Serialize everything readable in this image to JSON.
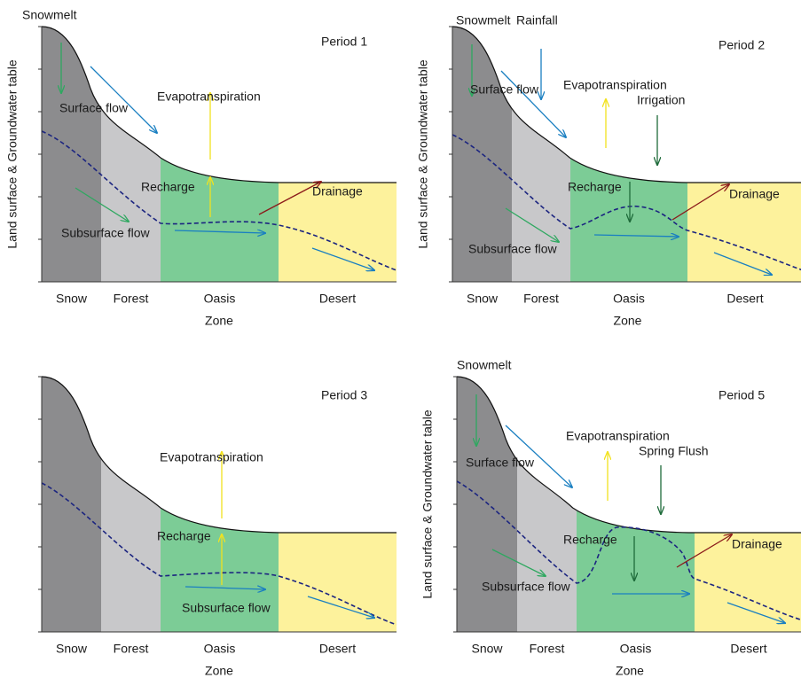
{
  "panels": [
    {
      "period": "Period 1",
      "y_axis_label": "Land surface & Groundwater table",
      "x_axis_label": "Zone",
      "zones": [
        "Snow",
        "Forest",
        "Oasis",
        "Desert"
      ],
      "annotations": [
        "Snowmelt",
        "Surface flow",
        "Evapotranspiration",
        "Recharge",
        "Drainage",
        "Subsurface flow"
      ]
    },
    {
      "period": "Period 2",
      "y_axis_label": "Land surface & Groundwater table",
      "x_axis_label": "Zone",
      "zones": [
        "Snow",
        "Forest",
        "Oasis",
        "Desert"
      ],
      "annotations": [
        "Snowmelt",
        "Rainfall",
        "Surface flow",
        "Evapotranspiration",
        "Irrigation",
        "Recharge",
        "Drainage",
        "Subsurface flow"
      ]
    },
    {
      "period": "Period 3",
      "x_axis_label": "Zone",
      "zones": [
        "Snow",
        "Forest",
        "Oasis",
        "Desert"
      ],
      "annotations": [
        "Evapotranspiration",
        "Recharge",
        "Subsurface flow"
      ]
    },
    {
      "period": "Period 5",
      "y_axis_label": "Land surface & Groundwater table",
      "x_axis_label": "Zone",
      "zones": [
        "Snow",
        "Forest",
        "Oasis",
        "Desert"
      ],
      "annotations": [
        "Snowmelt",
        "Surface flow",
        "Evapotranspiration",
        "Spring Flush",
        "Recharge",
        "Drainage",
        "Subsurface flow"
      ]
    }
  ]
}
